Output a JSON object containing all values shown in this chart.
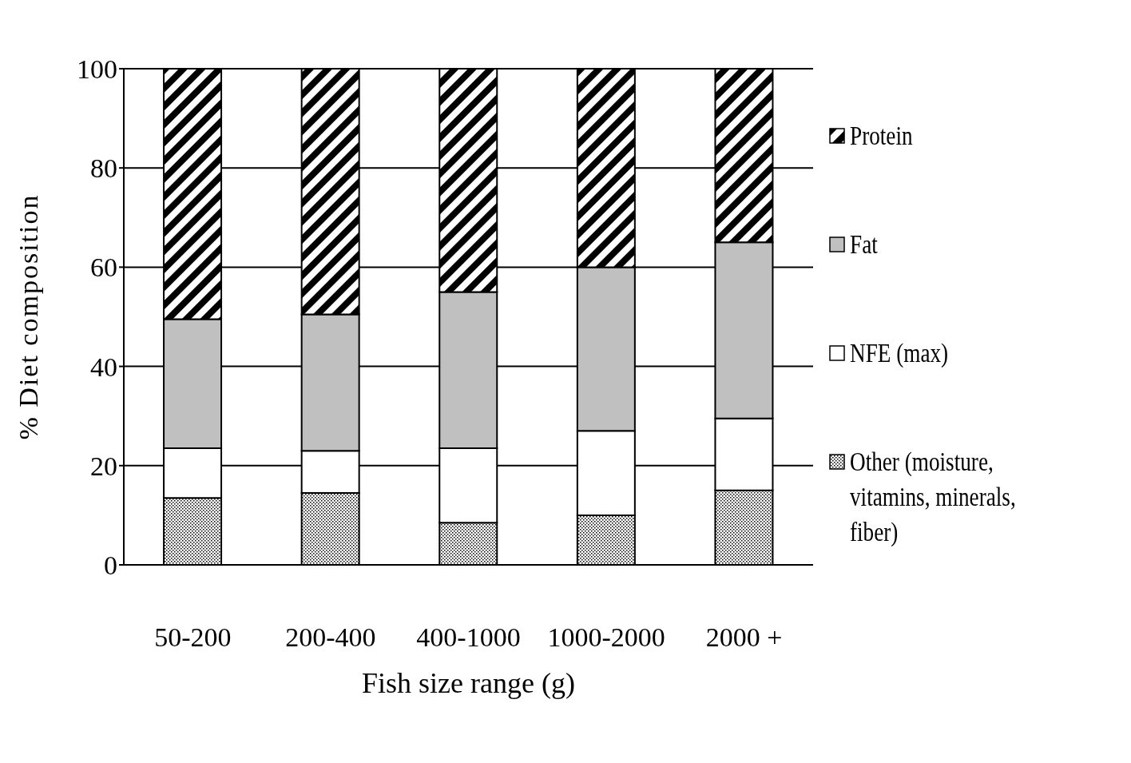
{
  "chart_data": {
    "type": "bar",
    "stacked": true,
    "xlabel": "Fish size range (g)",
    "ylabel": "% Diet composition",
    "categories": [
      "50-200",
      "200-400",
      "400-1000",
      "1000-2000",
      "2000 +"
    ],
    "series": [
      {
        "name": "Other (moisture, vitamins, minerals, fiber)",
        "color": "#000000",
        "values": [
          13.5,
          14.5,
          8.5,
          10,
          15
        ]
      },
      {
        "name": "NFE (max)",
        "color": "#ffffff",
        "values": [
          10,
          8.5,
          15,
          17,
          14.5
        ]
      },
      {
        "name": "Fat",
        "color": "#c0c0c0",
        "values": [
          26,
          27.5,
          31.5,
          33,
          35.5
        ]
      },
      {
        "name": "Protein",
        "color": "#000000",
        "values": [
          50.5,
          49.5,
          45,
          40,
          35
        ]
      }
    ],
    "ylim": [
      0,
      100
    ],
    "yticks": [
      0,
      20,
      40,
      60,
      80,
      100
    ],
    "grid": "y",
    "legend": "right"
  }
}
